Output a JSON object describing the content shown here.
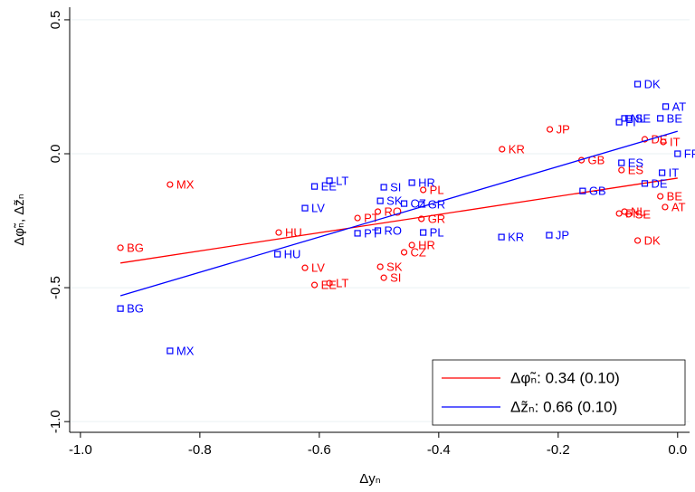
{
  "chart_data": {
    "type": "scatter",
    "x_label": "Δyₙ",
    "y_label": "Δφ̃ₙ, Δz̃ₙ",
    "xlim": [
      -1.018,
      0.02
    ],
    "ylim": [
      -1.04,
      0.547
    ],
    "xticks": [
      {
        "value": -1.0,
        "label": "-1.0"
      },
      -0.8,
      -0.6,
      -0.4,
      -0.2,
      {
        "value": 0.0,
        "label": "0.0"
      }
    ],
    "yticks": [
      0.5,
      {
        "value": 0.0,
        "label": "0.0"
      },
      -0.5,
      {
        "value": -1.0,
        "label": "-1.0"
      }
    ],
    "grid": true,
    "legend": "lower right",
    "series": [
      {
        "name": "Δφ̃ₙ: 0.34 (0.10)",
        "color": "#ff0000",
        "marker": "circle",
        "labels": [
          "BG",
          "MX",
          "HU",
          "LV",
          "EE",
          "LT",
          "PT",
          "RO",
          "SK",
          "SI",
          "CZ",
          "HR",
          "GR",
          "PL",
          "KR",
          "JP",
          "GB",
          "ES",
          "FI",
          "NL",
          "SE",
          "DE",
          "IT",
          "BE",
          "AT",
          "DK"
        ],
        "x": [
          -0.933,
          -0.85,
          -0.668,
          -0.624,
          -0.608,
          -0.583,
          -0.536,
          -0.502,
          -0.498,
          -0.492,
          -0.458,
          -0.445,
          -0.429,
          -0.426,
          -0.294,
          -0.214,
          -0.161,
          -0.094,
          -0.098,
          -0.089,
          -0.082,
          -0.055,
          -0.024,
          -0.029,
          -0.021,
          -0.067
        ],
        "values": [
          -0.351,
          -0.115,
          -0.294,
          -0.426,
          -0.49,
          -0.483,
          -0.24,
          -0.216,
          -0.422,
          -0.463,
          -0.368,
          -0.341,
          -0.243,
          -0.135,
          0.017,
          0.091,
          -0.024,
          -0.061,
          -0.223,
          -0.216,
          -0.226,
          0.054,
          0.044,
          -0.159,
          -0.199,
          -0.324
        ],
        "fit": {
          "x": [
            -0.933,
            0.0
          ],
          "y": [
            -0.408,
            -0.091
          ]
        }
      },
      {
        "name": "Δz̃ₙ: 0.66 (0.10)",
        "color": "#0000ff",
        "marker": "square",
        "labels": [
          "BG",
          "MX",
          "HU",
          "LV",
          "EE",
          "LT",
          "PT",
          "RO",
          "SK",
          "SI",
          "CZ",
          "HR",
          "GR",
          "PL",
          "KR",
          "JP",
          "GB",
          "ES",
          "FI",
          "NL",
          "SE",
          "DK",
          "AT",
          "BE",
          "DE",
          "IT",
          "FR"
        ],
        "x": [
          -0.933,
          -0.85,
          -0.67,
          -0.624,
          -0.608,
          -0.583,
          -0.536,
          -0.502,
          -0.498,
          -0.492,
          -0.458,
          -0.445,
          -0.429,
          -0.426,
          -0.295,
          -0.215,
          -0.159,
          -0.094,
          -0.098,
          -0.089,
          -0.082,
          -0.067,
          -0.02,
          -0.029,
          -0.055,
          -0.026,
          0.0
        ],
        "values": [
          -0.578,
          -0.736,
          -0.375,
          -0.203,
          -0.122,
          -0.101,
          -0.297,
          -0.287,
          -0.176,
          -0.125,
          -0.186,
          -0.108,
          -0.189,
          -0.294,
          -0.311,
          -0.304,
          -0.139,
          -0.034,
          0.118,
          0.132,
          0.132,
          0.26,
          0.176,
          0.132,
          -0.111,
          -0.071,
          0.0
        ],
        "fit": {
          "x": [
            -0.933,
            0.0
          ],
          "y": [
            -0.53,
            0.084
          ]
        }
      }
    ]
  }
}
